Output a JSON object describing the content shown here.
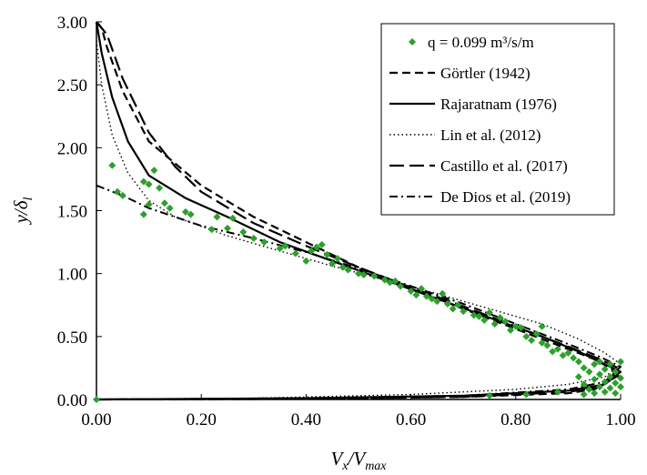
{
  "chart_data": {
    "type": "scatter",
    "xlabel": "V",
    "xlabel_sub": "x",
    "xlabel_mid": "/V",
    "xlabel_sub2": "max",
    "ylabel": "y/δ",
    "ylabel_sub": "l",
    "xlim": [
      0,
      1
    ],
    "ylim": [
      0,
      3
    ],
    "x_ticks": [
      "0.00",
      "0.20",
      "0.40",
      "0.60",
      "0.80",
      "1.00"
    ],
    "y_ticks": [
      "0.00",
      "0.50",
      "1.00",
      "1.50",
      "2.00",
      "2.50",
      "3.00"
    ],
    "grid": false,
    "legend_position": "top-right",
    "legend": [
      {
        "label": "q = 0.099 m³/s/m",
        "style": "marker",
        "color": "#2ca02c"
      },
      {
        "label": "Görtler (1942)",
        "style": "dash",
        "color": "#000000"
      },
      {
        "label": "Rajaratnam (1976)",
        "style": "solid",
        "color": "#000000"
      },
      {
        "label": "Lin et al. (2012)",
        "style": "dot",
        "color": "#000000"
      },
      {
        "label": "Castillo et al. (2017)",
        "style": "longdash",
        "color": "#000000"
      },
      {
        "label": "De Dios et al. (2019)",
        "style": "dashdot",
        "color": "#000000"
      }
    ],
    "points": [
      [
        0.0,
        0.0
      ],
      [
        0.03,
        1.86
      ],
      [
        0.04,
        1.65
      ],
      [
        0.05,
        1.62
      ],
      [
        0.09,
        1.47
      ],
      [
        0.09,
        1.73
      ],
      [
        0.1,
        1.71
      ],
      [
        0.1,
        1.55
      ],
      [
        0.11,
        1.82
      ],
      [
        0.12,
        1.68
      ],
      [
        0.13,
        1.56
      ],
      [
        0.14,
        1.52
      ],
      [
        0.17,
        1.49
      ],
      [
        0.18,
        1.47
      ],
      [
        0.22,
        1.35
      ],
      [
        0.23,
        1.45
      ],
      [
        0.25,
        1.36
      ],
      [
        0.26,
        1.44
      ],
      [
        0.28,
        1.33
      ],
      [
        0.3,
        1.28
      ],
      [
        0.32,
        1.25
      ],
      [
        0.35,
        1.2
      ],
      [
        0.36,
        1.22
      ],
      [
        0.38,
        1.16
      ],
      [
        0.4,
        1.1
      ],
      [
        0.41,
        1.18
      ],
      [
        0.42,
        1.21
      ],
      [
        0.43,
        1.23
      ],
      [
        0.44,
        1.15
      ],
      [
        0.45,
        1.08
      ],
      [
        0.46,
        1.12
      ],
      [
        0.47,
        1.05
      ],
      [
        0.48,
        1.03
      ],
      [
        0.5,
        1.0
      ],
      [
        0.51,
        0.99
      ],
      [
        0.53,
        0.98
      ],
      [
        0.55,
        0.95
      ],
      [
        0.56,
        0.93
      ],
      [
        0.57,
        0.94
      ],
      [
        0.58,
        0.9
      ],
      [
        0.6,
        0.86
      ],
      [
        0.61,
        0.83
      ],
      [
        0.62,
        0.88
      ],
      [
        0.63,
        0.82
      ],
      [
        0.64,
        0.8
      ],
      [
        0.65,
        0.78
      ],
      [
        0.66,
        0.84
      ],
      [
        0.67,
        0.76
      ],
      [
        0.68,
        0.72
      ],
      [
        0.69,
        0.75
      ],
      [
        0.7,
        0.7
      ],
      [
        0.72,
        0.67
      ],
      [
        0.73,
        0.66
      ],
      [
        0.74,
        0.63
      ],
      [
        0.75,
        0.69
      ],
      [
        0.76,
        0.6
      ],
      [
        0.77,
        0.65
      ],
      [
        0.78,
        0.62
      ],
      [
        0.79,
        0.55
      ],
      [
        0.8,
        0.58
      ],
      [
        0.81,
        0.57
      ],
      [
        0.82,
        0.5
      ],
      [
        0.83,
        0.47
      ],
      [
        0.84,
        0.52
      ],
      [
        0.85,
        0.45
      ],
      [
        0.85,
        0.58
      ],
      [
        0.86,
        0.43
      ],
      [
        0.87,
        0.38
      ],
      [
        0.88,
        0.4
      ],
      [
        0.89,
        0.35
      ],
      [
        0.9,
        0.37
      ],
      [
        0.91,
        0.33
      ],
      [
        0.92,
        0.3
      ],
      [
        0.92,
        0.18
      ],
      [
        0.93,
        0.25
      ],
      [
        0.93,
        0.12
      ],
      [
        0.94,
        0.22
      ],
      [
        0.94,
        0.08
      ],
      [
        0.95,
        0.28
      ],
      [
        0.95,
        0.16
      ],
      [
        0.95,
        0.05
      ],
      [
        0.96,
        0.2
      ],
      [
        0.96,
        0.1
      ],
      [
        0.96,
        0.3
      ],
      [
        0.97,
        0.24
      ],
      [
        0.97,
        0.14
      ],
      [
        0.97,
        0.06
      ],
      [
        0.98,
        0.18
      ],
      [
        0.98,
        0.28
      ],
      [
        0.98,
        0.09
      ],
      [
        0.99,
        0.22
      ],
      [
        0.99,
        0.13
      ],
      [
        0.99,
        0.05
      ],
      [
        1.0,
        0.3
      ],
      [
        1.0,
        0.17
      ],
      [
        1.0,
        0.1
      ],
      [
        0.75,
        0.03
      ],
      [
        0.82,
        0.04
      ],
      [
        0.88,
        0.06
      ],
      [
        0.93,
        0.04
      ]
    ],
    "curves": {
      "gortler": [
        [
          0.0,
          3.0
        ],
        [
          0.01,
          2.95
        ],
        [
          0.02,
          2.8
        ],
        [
          0.05,
          2.45
        ],
        [
          0.1,
          2.05
        ],
        [
          0.2,
          1.7
        ],
        [
          0.3,
          1.45
        ],
        [
          0.4,
          1.25
        ],
        [
          0.5,
          1.05
        ],
        [
          0.6,
          0.88
        ],
        [
          0.7,
          0.72
        ],
        [
          0.8,
          0.56
        ],
        [
          0.9,
          0.4
        ],
        [
          0.95,
          0.32
        ],
        [
          1.0,
          0.2
        ],
        [
          0.95,
          0.08
        ],
        [
          0.9,
          0.05
        ],
        [
          0.7,
          0.02
        ],
        [
          0.4,
          0.005
        ],
        [
          0.0,
          0.0
        ]
      ],
      "rajaratnam": [
        [
          0.0,
          3.0
        ],
        [
          0.01,
          2.75
        ],
        [
          0.03,
          2.4
        ],
        [
          0.06,
          2.05
        ],
        [
          0.1,
          1.78
        ],
        [
          0.17,
          1.6
        ],
        [
          0.25,
          1.45
        ],
        [
          0.35,
          1.25
        ],
        [
          0.45,
          1.1
        ],
        [
          0.55,
          0.95
        ],
        [
          0.65,
          0.8
        ],
        [
          0.75,
          0.65
        ],
        [
          0.85,
          0.5
        ],
        [
          0.92,
          0.38
        ],
        [
          0.97,
          0.28
        ],
        [
          1.0,
          0.22
        ],
        [
          0.97,
          0.12
        ],
        [
          0.9,
          0.07
        ],
        [
          0.7,
          0.03
        ],
        [
          0.4,
          0.01
        ],
        [
          0.0,
          0.0
        ]
      ],
      "lin": [
        [
          0.0,
          2.85
        ],
        [
          0.01,
          2.5
        ],
        [
          0.03,
          2.1
        ],
        [
          0.06,
          1.8
        ],
        [
          0.1,
          1.58
        ],
        [
          0.15,
          1.45
        ],
        [
          0.25,
          1.3
        ],
        [
          0.35,
          1.18
        ],
        [
          0.45,
          1.06
        ],
        [
          0.55,
          0.95
        ],
        [
          0.65,
          0.84
        ],
        [
          0.75,
          0.72
        ],
        [
          0.85,
          0.6
        ],
        [
          0.92,
          0.48
        ],
        [
          0.97,
          0.37
        ],
        [
          1.0,
          0.28
        ],
        [
          0.97,
          0.18
        ],
        [
          0.9,
          0.12
        ],
        [
          0.8,
          0.08
        ],
        [
          0.6,
          0.04
        ],
        [
          0.3,
          0.01
        ],
        [
          0.0,
          0.0
        ]
      ],
      "castillo": [
        [
          0.0,
          3.0
        ],
        [
          0.02,
          2.9
        ],
        [
          0.05,
          2.55
        ],
        [
          0.1,
          2.12
        ],
        [
          0.15,
          1.85
        ],
        [
          0.2,
          1.65
        ],
        [
          0.3,
          1.4
        ],
        [
          0.4,
          1.22
        ],
        [
          0.5,
          1.05
        ],
        [
          0.6,
          0.89
        ],
        [
          0.7,
          0.74
        ],
        [
          0.8,
          0.58
        ],
        [
          0.9,
          0.42
        ],
        [
          0.96,
          0.32
        ],
        [
          1.0,
          0.24
        ],
        [
          0.96,
          0.1
        ],
        [
          0.9,
          0.06
        ],
        [
          0.7,
          0.02
        ],
        [
          0.4,
          0.005
        ],
        [
          0.0,
          0.0
        ]
      ],
      "dedios": [
        [
          0.0,
          1.7
        ],
        [
          0.05,
          1.62
        ],
        [
          0.1,
          1.52
        ],
        [
          0.2,
          1.38
        ],
        [
          0.3,
          1.28
        ],
        [
          0.4,
          1.17
        ],
        [
          0.5,
          1.04
        ],
        [
          0.6,
          0.9
        ],
        [
          0.7,
          0.76
        ],
        [
          0.8,
          0.6
        ],
        [
          0.9,
          0.44
        ],
        [
          0.96,
          0.34
        ],
        [
          1.0,
          0.26
        ],
        [
          0.97,
          0.14
        ],
        [
          0.9,
          0.08
        ],
        [
          0.7,
          0.03
        ],
        [
          0.4,
          0.01
        ],
        [
          0.0,
          0.0
        ]
      ]
    }
  }
}
